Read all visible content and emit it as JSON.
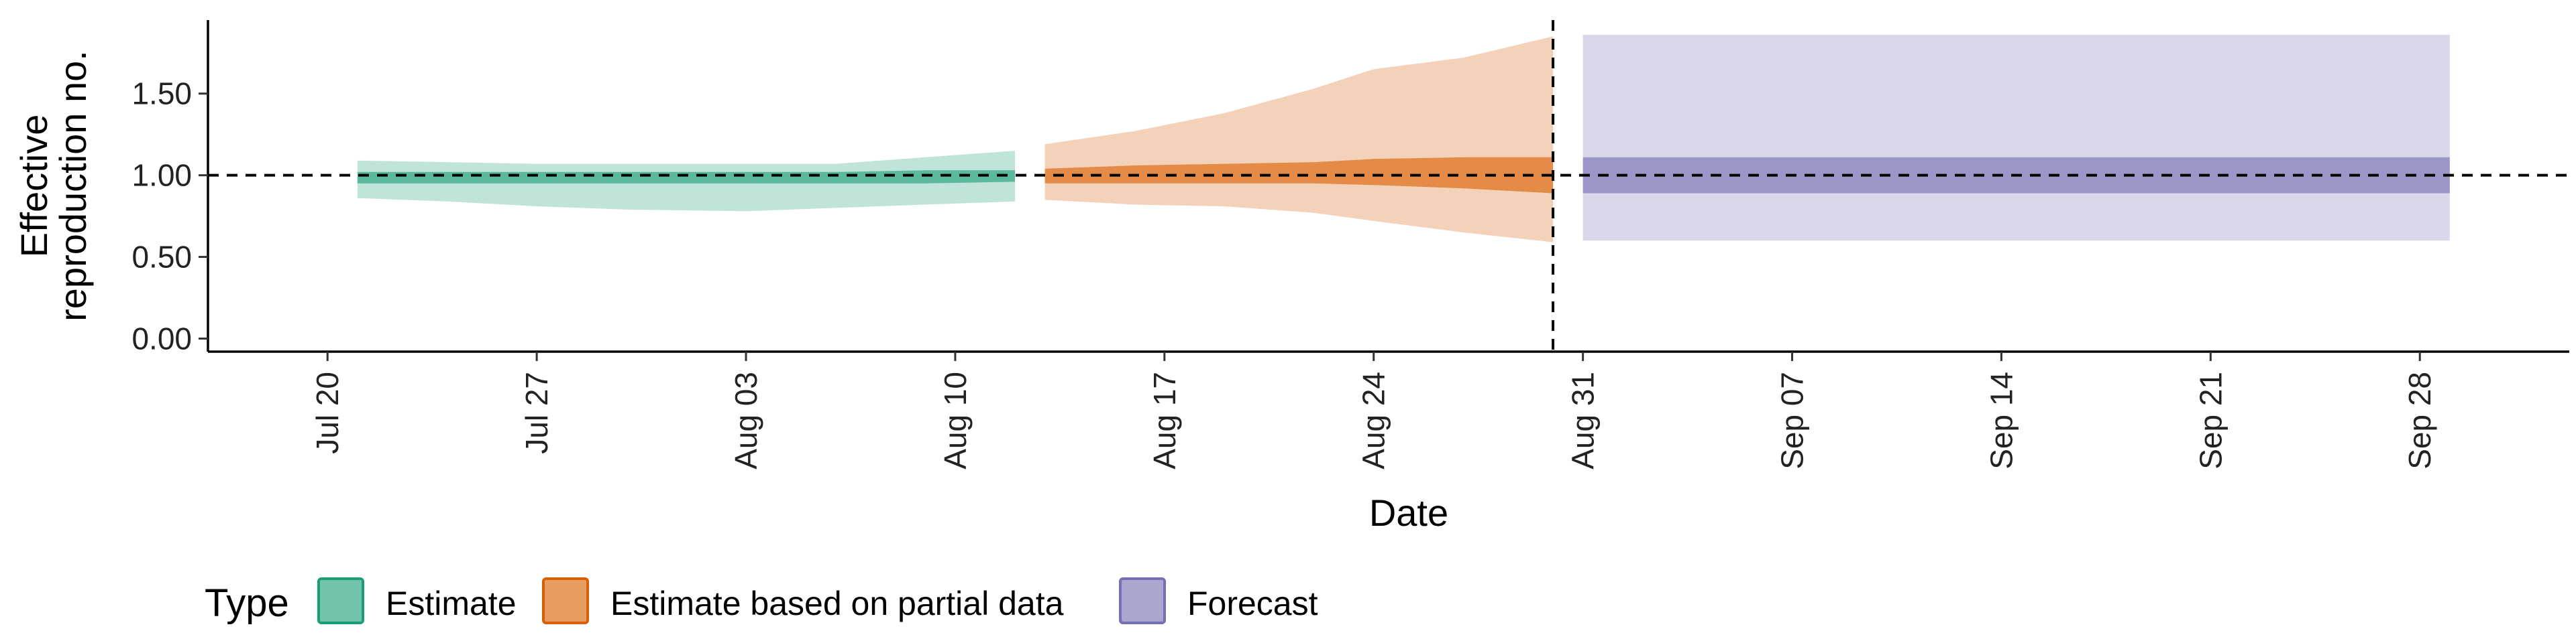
{
  "chart_data": {
    "type": "area",
    "title": "",
    "xlabel": "Date",
    "ylabel": "Effective reproduction no.",
    "ylabel_lines": [
      "Effective",
      "reproduction no."
    ],
    "x_range": [
      "2021-07-16",
      "2021-10-03"
    ],
    "ylim": [
      -0.08,
      1.95
    ],
    "y_ticks": [
      {
        "value": 0.0,
        "label": "0.00"
      },
      {
        "value": 0.5,
        "label": "0.50"
      },
      {
        "value": 1.0,
        "label": "1.00"
      },
      {
        "value": 1.5,
        "label": "1.50"
      }
    ],
    "x_ticks": [
      {
        "date": "2021-07-20",
        "label": "Jul 20"
      },
      {
        "date": "2021-07-27",
        "label": "Jul 27"
      },
      {
        "date": "2021-08-03",
        "label": "Aug 03"
      },
      {
        "date": "2021-08-10",
        "label": "Aug 10"
      },
      {
        "date": "2021-08-17",
        "label": "Aug 17"
      },
      {
        "date": "2021-08-24",
        "label": "Aug 24"
      },
      {
        "date": "2021-08-31",
        "label": "Aug 31"
      },
      {
        "date": "2021-09-07",
        "label": "Sep 07"
      },
      {
        "date": "2021-09-14",
        "label": "Sep 14"
      },
      {
        "date": "2021-09-21",
        "label": "Sep 21"
      },
      {
        "date": "2021-09-28",
        "label": "Sep 28"
      }
    ],
    "reference_hline": 1.0,
    "reference_vline": "2021-08-30",
    "grid": false,
    "legend_position": "bottom-left",
    "legend": {
      "title": "Type",
      "items": [
        {
          "label": "Estimate",
          "color": "#1b9e77"
        },
        {
          "label": "Estimate based on partial data",
          "color": "#d95f02"
        },
        {
          "label": "Forecast",
          "color": "#7570b3"
        }
      ]
    },
    "series": [
      {
        "name": "Estimate",
        "color": "#1b9e77",
        "points": [
          {
            "x": "2021-07-21",
            "outer": [
              0.86,
              1.09
            ],
            "inner": [
              0.95,
              1.02
            ]
          },
          {
            "x": "2021-07-24",
            "outer": [
              0.84,
              1.08
            ],
            "inner": [
              0.95,
              1.02
            ]
          },
          {
            "x": "2021-07-27",
            "outer": [
              0.81,
              1.07
            ],
            "inner": [
              0.95,
              1.02
            ]
          },
          {
            "x": "2021-07-30",
            "outer": [
              0.79,
              1.07
            ],
            "inner": [
              0.95,
              1.02
            ]
          },
          {
            "x": "2021-08-03",
            "outer": [
              0.78,
              1.07
            ],
            "inner": [
              0.95,
              1.02
            ]
          },
          {
            "x": "2021-08-06",
            "outer": [
              0.8,
              1.07
            ],
            "inner": [
              0.95,
              1.02
            ]
          },
          {
            "x": "2021-08-09",
            "outer": [
              0.82,
              1.11
            ],
            "inner": [
              0.95,
              1.03
            ]
          },
          {
            "x": "2021-08-12",
            "outer": [
              0.84,
              1.15
            ],
            "inner": [
              0.96,
              1.03
            ]
          }
        ]
      },
      {
        "name": "Estimate based on partial data",
        "color": "#d95f02",
        "points": [
          {
            "x": "2021-08-13",
            "outer": [
              0.85,
              1.19
            ],
            "inner": [
              0.95,
              1.04
            ]
          },
          {
            "x": "2021-08-16",
            "outer": [
              0.82,
              1.27
            ],
            "inner": [
              0.95,
              1.06
            ]
          },
          {
            "x": "2021-08-19",
            "outer": [
              0.81,
              1.38
            ],
            "inner": [
              0.95,
              1.07
            ]
          },
          {
            "x": "2021-08-22",
            "outer": [
              0.77,
              1.53
            ],
            "inner": [
              0.95,
              1.08
            ]
          },
          {
            "x": "2021-08-24",
            "outer": [
              0.72,
              1.65
            ],
            "inner": [
              0.94,
              1.1
            ]
          },
          {
            "x": "2021-08-27",
            "outer": [
              0.65,
              1.72
            ],
            "inner": [
              0.92,
              1.11
            ]
          },
          {
            "x": "2021-08-30",
            "outer": [
              0.59,
              1.85
            ],
            "inner": [
              0.89,
              1.11
            ]
          }
        ]
      },
      {
        "name": "Forecast",
        "color": "#7570b3",
        "points": [
          {
            "x": "2021-08-31",
            "outer": [
              0.6,
              1.86
            ],
            "inner": [
              0.89,
              1.11
            ]
          },
          {
            "x": "2021-09-29",
            "outer": [
              0.6,
              1.86
            ],
            "inner": [
              0.89,
              1.11
            ]
          }
        ]
      }
    ]
  }
}
